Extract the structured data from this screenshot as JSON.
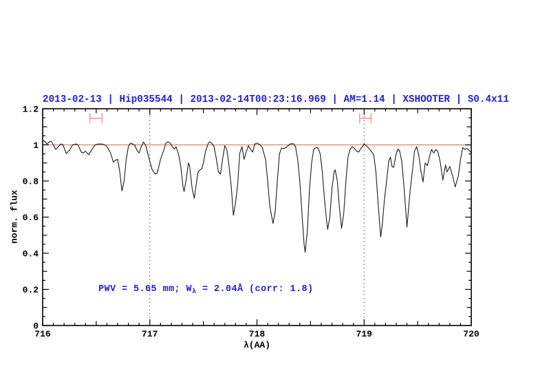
{
  "colors": {
    "title_blue": "#2121d8",
    "annotation_blue": "#2121d8",
    "continuum_red": "#e87a7a",
    "marker_pink": "#f19c9c",
    "spectrum": "#1a1a1a",
    "frame": "#000000",
    "dotted_line": "#444444"
  },
  "chart_data": {
    "type": "line",
    "title": "2013-02-13 | Hip035544 | 2013-02-14T00:23:16.969 | AM=1.14 | XSHOOTER | S0.4x11",
    "xlabel": "λ(AA)",
    "ylabel": "norm. flux",
    "annotation": {
      "full": "PWV = 5.65 mm; Wλ = 2.04Å (corr: 1.8)",
      "prefix": "PWV = 5.65 mm; W",
      "sub": "λ",
      "suffix": " = 2.04Å (corr: 1.8)"
    },
    "xlim": [
      716,
      720
    ],
    "ylim": [
      0,
      1.2
    ],
    "xticks": [
      716,
      717,
      718,
      719,
      720
    ],
    "xticklabels": [
      "716",
      "717",
      "718",
      "719",
      "720"
    ],
    "yticks": [
      0,
      0.2,
      0.4,
      0.6,
      0.8,
      1.0,
      1.2
    ],
    "yticklabels": [
      "0",
      "0.2",
      "0.4",
      "0.6",
      "0.8",
      "1",
      "1.2"
    ],
    "minor_x_step": 0.1,
    "minor_y_step": 0.05,
    "grid": false,
    "legend": false,
    "vlines_dotted": [
      717,
      719
    ],
    "continuum_y": 1.0,
    "markers": [
      {
        "x1": 716.44,
        "x2": 716.555,
        "y": 1.147,
        "cap": 0.028
      },
      {
        "x1": 718.958,
        "x2": 719.065,
        "y": 1.147,
        "cap": 0.028
      }
    ],
    "series": [
      {
        "name": "telluric-absorption-spectrum",
        "points": [
          [
            716.0,
            1.025
          ],
          [
            716.02,
            1.02
          ],
          [
            716.04,
            1.005
          ],
          [
            716.06,
            1.015
          ],
          [
            716.08,
            1.02
          ],
          [
            716.1,
            1.0
          ],
          [
            716.12,
            0.975
          ],
          [
            716.14,
            0.985
          ],
          [
            716.17,
            1.005
          ],
          [
            716.19,
            1.0
          ],
          [
            716.22,
            0.952
          ],
          [
            716.25,
            0.97
          ],
          [
            716.28,
            1.0
          ],
          [
            716.31,
            1.005
          ],
          [
            716.33,
            1.0
          ],
          [
            716.36,
            0.96
          ],
          [
            716.38,
            0.955
          ],
          [
            716.4,
            0.965
          ],
          [
            716.43,
            0.945
          ],
          [
            716.46,
            0.975
          ],
          [
            716.49,
            1.0
          ],
          [
            716.52,
            1.005
          ],
          [
            716.55,
            1.005
          ],
          [
            716.58,
            1.0
          ],
          [
            716.6,
            0.99
          ],
          [
            716.63,
            0.96
          ],
          [
            716.66,
            0.905
          ],
          [
            716.68,
            0.915
          ],
          [
            716.7,
            0.92
          ],
          [
            716.72,
            0.85
          ],
          [
            716.74,
            0.745
          ],
          [
            716.76,
            0.8
          ],
          [
            716.78,
            0.92
          ],
          [
            716.8,
            0.99
          ],
          [
            716.82,
            1.01
          ],
          [
            716.84,
            1.005
          ],
          [
            716.86,
            0.998
          ],
          [
            716.88,
            0.97
          ],
          [
            716.9,
            0.955
          ],
          [
            716.92,
            0.99
          ],
          [
            716.94,
            1.015
          ],
          [
            716.96,
            1.0
          ],
          [
            716.98,
            0.955
          ],
          [
            717.0,
            0.91
          ],
          [
            717.02,
            0.865
          ],
          [
            717.05,
            0.838
          ],
          [
            717.07,
            0.845
          ],
          [
            717.1,
            0.92
          ],
          [
            717.13,
            0.97
          ],
          [
            717.15,
            1.01
          ],
          [
            717.17,
            1.017
          ],
          [
            717.19,
            1.01
          ],
          [
            717.21,
            0.99
          ],
          [
            717.23,
            0.977
          ],
          [
            717.245,
            0.99
          ],
          [
            717.27,
            0.945
          ],
          [
            717.29,
            0.876
          ],
          [
            717.31,
            0.767
          ],
          [
            717.32,
            0.742
          ],
          [
            717.34,
            0.81
          ],
          [
            717.36,
            0.9
          ],
          [
            717.37,
            0.888
          ],
          [
            717.395,
            0.76
          ],
          [
            717.415,
            0.704
          ],
          [
            717.44,
            0.81
          ],
          [
            717.45,
            0.85
          ],
          [
            717.47,
            0.862
          ],
          [
            717.485,
            0.868
          ],
          [
            717.5,
            0.9
          ],
          [
            717.52,
            0.964
          ],
          [
            717.545,
            1.008
          ],
          [
            717.56,
            1.017
          ],
          [
            717.58,
            1.008
          ],
          [
            717.6,
            0.99
          ],
          [
            717.62,
            0.926
          ],
          [
            717.64,
            0.85
          ],
          [
            717.66,
            0.838
          ],
          [
            717.68,
            0.925
          ],
          [
            717.7,
            0.995
          ],
          [
            717.72,
            0.97
          ],
          [
            717.74,
            0.88
          ],
          [
            717.76,
            0.77
          ],
          [
            717.78,
            0.61
          ],
          [
            717.8,
            0.68
          ],
          [
            717.82,
            0.78
          ],
          [
            717.84,
            0.955
          ],
          [
            717.86,
            0.99
          ],
          [
            717.88,
            0.92
          ],
          [
            717.9,
            0.96
          ],
          [
            717.92,
            0.995
          ],
          [
            717.94,
            0.975
          ],
          [
            717.96,
            0.96
          ],
          [
            717.98,
            1.005
          ],
          [
            718.0,
            1.01
          ],
          [
            718.03,
            1.0
          ],
          [
            718.05,
            0.985
          ],
          [
            718.08,
            0.92
          ],
          [
            718.1,
            0.8
          ],
          [
            718.12,
            0.66
          ],
          [
            718.15,
            0.565
          ],
          [
            718.17,
            0.63
          ],
          [
            718.19,
            0.8
          ],
          [
            718.21,
            0.95
          ],
          [
            718.23,
            0.983
          ],
          [
            718.25,
            0.98
          ],
          [
            718.27,
            0.985
          ],
          [
            718.29,
            0.995
          ],
          [
            718.31,
            1.005
          ],
          [
            718.34,
            1.007
          ],
          [
            718.36,
            0.99
          ],
          [
            718.38,
            0.92
          ],
          [
            718.4,
            0.8
          ],
          [
            718.42,
            0.62
          ],
          [
            718.44,
            0.45
          ],
          [
            718.45,
            0.405
          ],
          [
            718.47,
            0.52
          ],
          [
            718.49,
            0.75
          ],
          [
            718.51,
            0.9
          ],
          [
            718.53,
            0.977
          ],
          [
            718.55,
            0.985
          ],
          [
            718.57,
            0.983
          ],
          [
            718.59,
            0.95
          ],
          [
            718.61,
            0.85
          ],
          [
            718.63,
            0.7
          ],
          [
            718.65,
            0.58
          ],
          [
            718.66,
            0.532
          ],
          [
            718.68,
            0.6
          ],
          [
            718.7,
            0.76
          ],
          [
            718.72,
            0.85
          ],
          [
            718.73,
            0.862
          ],
          [
            718.75,
            0.8
          ],
          [
            718.77,
            0.65
          ],
          [
            718.79,
            0.538
          ],
          [
            718.81,
            0.62
          ],
          [
            718.83,
            0.8
          ],
          [
            718.85,
            0.935
          ],
          [
            718.87,
            0.975
          ],
          [
            718.89,
            0.99
          ],
          [
            718.91,
            0.98
          ],
          [
            718.93,
            0.965
          ],
          [
            718.95,
            0.96
          ],
          [
            718.97,
            0.98
          ],
          [
            718.99,
            0.995
          ],
          [
            719.0,
            1.005
          ],
          [
            719.03,
            0.99
          ],
          [
            719.06,
            0.97
          ],
          [
            719.09,
            0.945
          ],
          [
            719.11,
            0.85
          ],
          [
            719.13,
            0.68
          ],
          [
            719.155,
            0.49
          ],
          [
            719.17,
            0.56
          ],
          [
            719.19,
            0.7
          ],
          [
            719.21,
            0.8
          ],
          [
            719.23,
            0.91
          ],
          [
            719.245,
            0.932
          ],
          [
            719.26,
            0.881
          ],
          [
            719.275,
            0.875
          ],
          [
            719.3,
            0.951
          ],
          [
            719.315,
            0.977
          ],
          [
            719.33,
            0.97
          ],
          [
            719.35,
            0.913
          ],
          [
            719.37,
            0.786
          ],
          [
            719.4,
            0.545
          ],
          [
            719.43,
            0.75
          ],
          [
            719.45,
            0.85
          ],
          [
            719.47,
            0.964
          ],
          [
            719.49,
            0.99
          ],
          [
            719.51,
            0.945
          ],
          [
            719.53,
            0.855
          ],
          [
            719.55,
            0.795
          ],
          [
            719.57,
            0.9
          ],
          [
            719.59,
            0.885
          ],
          [
            719.61,
            0.935
          ],
          [
            719.63,
            0.975
          ],
          [
            719.65,
            0.955
          ],
          [
            719.67,
            0.975
          ],
          [
            719.69,
            0.96
          ],
          [
            719.71,
            0.905
          ],
          [
            719.735,
            0.805
          ],
          [
            719.76,
            0.888
          ],
          [
            719.775,
            0.85
          ],
          [
            719.8,
            0.881
          ],
          [
            719.83,
            0.82
          ],
          [
            719.85,
            0.767
          ],
          [
            719.88,
            0.83
          ],
          [
            719.9,
            0.92
          ],
          [
            719.92,
            0.985
          ],
          [
            719.94,
            0.975
          ],
          [
            719.96,
            0.98
          ],
          [
            719.98,
            0.97
          ],
          [
            720.0,
            0.955
          ]
        ]
      }
    ]
  }
}
